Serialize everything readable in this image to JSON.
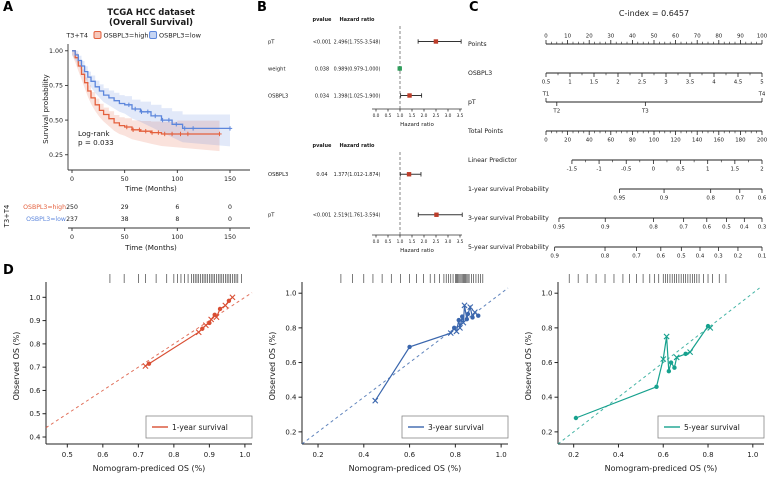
{
  "panels": {
    "a": "A",
    "b": "B",
    "c": "C",
    "d": "D"
  },
  "chart_data": [
    {
      "id": "km",
      "type": "km",
      "title_lines": [
        "TCGA HCC dataset",
        "(Overall Survival)"
      ],
      "legend_title": "T3+T4",
      "xlabel": "Time (Months)",
      "ylabel": "Survival probability",
      "xticks": [
        0,
        50,
        100,
        150
      ],
      "yticks": [
        1.0,
        0.75,
        0.5,
        0.25
      ],
      "annotation_lines": [
        "Log-rank",
        "p = 0.033"
      ],
      "series": [
        {
          "name": "OSBPL3=high",
          "color": "#E4603D",
          "x": [
            0,
            3,
            6,
            9,
            12,
            15,
            18,
            22,
            26,
            30,
            35,
            40,
            45,
            50,
            57,
            65,
            75,
            85,
            100,
            140
          ],
          "y": [
            1.0,
            0.95,
            0.89,
            0.83,
            0.77,
            0.71,
            0.66,
            0.61,
            0.57,
            0.54,
            0.51,
            0.48,
            0.46,
            0.45,
            0.43,
            0.42,
            0.41,
            0.4,
            0.4,
            0.4
          ],
          "censors": [
            52,
            58,
            64,
            70,
            76,
            82,
            88,
            95,
            103,
            110,
            140
          ]
        },
        {
          "name": "OSBPL3=low",
          "color": "#5C86DC",
          "x": [
            0,
            3,
            6,
            9,
            12,
            15,
            18,
            22,
            26,
            30,
            35,
            40,
            45,
            50,
            57,
            65,
            75,
            85,
            95,
            105,
            150
          ],
          "y": [
            1.0,
            0.97,
            0.93,
            0.89,
            0.85,
            0.81,
            0.78,
            0.74,
            0.71,
            0.68,
            0.66,
            0.64,
            0.62,
            0.61,
            0.58,
            0.56,
            0.53,
            0.5,
            0.47,
            0.44,
            0.44
          ],
          "censors": [
            54,
            60,
            66,
            72,
            79,
            86,
            92,
            99,
            107,
            115,
            150
          ]
        }
      ],
      "risk_table": {
        "group_label": "T3+T4",
        "xlabel": "Time (Months)",
        "xticks": [
          0,
          50,
          100,
          150
        ],
        "rows": [
          {
            "name": "OSBPL3=high",
            "color": "#E4603D",
            "values": [
              250,
              29,
              6,
              0
            ]
          },
          {
            "name": "OSBPL3=low",
            "color": "#5C86DC",
            "values": [
              237,
              38,
              8,
              0
            ]
          }
        ]
      }
    },
    {
      "id": "forest1",
      "type": "forest",
      "col_headers": [
        "pvalue",
        "Hazard ratio"
      ],
      "xlabel": "Hazard ratio",
      "xticks": [
        0.0,
        0.5,
        1.0,
        1.5,
        2.0,
        2.5,
        3.0,
        3.5
      ],
      "xmax": 3.5,
      "refline": 1.0,
      "rows": [
        {
          "name": "pT",
          "pvalue": "<0.001",
          "label": "2.496(1.755-3.548)",
          "hr": 2.496,
          "lo": 1.755,
          "hi": 3.548,
          "color": "#BC3C29"
        },
        {
          "name": "weight",
          "pvalue": "0.038",
          "label": "0.989(0.979-1.000)",
          "hr": 0.989,
          "lo": 0.979,
          "hi": 1.0,
          "color": "#2E9E5B"
        },
        {
          "name": "OSBPL3",
          "pvalue": "0.034",
          "label": "1.398(1.025-1.900)",
          "hr": 1.398,
          "lo": 1.025,
          "hi": 1.9,
          "color": "#BC3C29"
        }
      ]
    },
    {
      "id": "forest2",
      "type": "forest",
      "col_headers": [
        "pvalue",
        "Hazard ratio"
      ],
      "xlabel": "Hazard ratio",
      "xticks": [
        0.0,
        0.5,
        1.0,
        1.5,
        2.0,
        2.5,
        3.0,
        3.5
      ],
      "xmax": 3.5,
      "refline": 1.0,
      "rows": [
        {
          "name": "OSBPL3",
          "pvalue": "0.04",
          "label": "1.377(1.012-1.874)",
          "hr": 1.377,
          "lo": 1.012,
          "hi": 1.874,
          "color": "#BC3C29"
        },
        {
          "name": "pT",
          "pvalue": "<0.001",
          "label": "2.519(1.761-3.594)",
          "hr": 2.519,
          "lo": 1.761,
          "hi": 3.594,
          "color": "#BC3C29"
        }
      ]
    },
    {
      "id": "nomogram",
      "type": "nomogram",
      "title": "C-index = 0.6457",
      "rows": [
        {
          "name": "Points",
          "side": "above",
          "minor": 3,
          "start": 0,
          "end": 1,
          "ticks": [
            "0",
            "10",
            "20",
            "30",
            "40",
            "50",
            "60",
            "70",
            "80",
            "90",
            "100"
          ]
        },
        {
          "name": "OSBPL3",
          "side": "below",
          "minor": 1,
          "start": 0,
          "end": 1,
          "ticks": [
            "0.5",
            "1",
            "1.5",
            "2",
            "2.5",
            "3",
            "3.5",
            "4",
            "4.5",
            "5"
          ]
        },
        {
          "name": "pT",
          "start": 0,
          "end": 1,
          "ticks": [
            {
              "label": "T1",
              "pos": 0,
              "side": "above"
            },
            {
              "label": "T2",
              "pos": 0.05,
              "side": "below"
            },
            {
              "label": "T3",
              "pos": 0.46,
              "side": "below"
            },
            {
              "label": "T4",
              "pos": 1,
              "side": "above"
            }
          ]
        },
        {
          "name": "Total Points",
          "side": "below",
          "minor": 3,
          "start": 0,
          "end": 1,
          "ticks": [
            "0",
            "20",
            "40",
            "60",
            "80",
            "100",
            "120",
            "140",
            "160",
            "180",
            "200"
          ]
        },
        {
          "name": "Linear Predictor",
          "side": "below",
          "minor": 1,
          "start": 0.12,
          "end": 1,
          "ticks": [
            "-1.5",
            "-1",
            "-0.5",
            "0",
            "0.5",
            "1",
            "1.5",
            "2"
          ]
        },
        {
          "name": "1-year survival Probability",
          "side": "below",
          "start": 0.34,
          "end": 1,
          "ticks": [
            "0.95",
            "0.9",
            "0.8",
            "0.7",
            "0.6"
          ],
          "positions": [
            0,
            0.313,
            0.64,
            0.844,
            1
          ]
        },
        {
          "name": "3-year survival Probability",
          "side": "below",
          "start": 0.06,
          "end": 1,
          "ticks": [
            "0.95",
            "0.9",
            "0.8",
            "0.7",
            "0.6",
            "0.5",
            "0.4",
            "0.3"
          ],
          "positions": [
            0,
            0.228,
            0.466,
            0.614,
            0.728,
            0.825,
            0.913,
            1
          ]
        },
        {
          "name": "5-year survival Probability",
          "side": "below",
          "start": 0.04,
          "end": 1,
          "ticks": [
            "0.9",
            "0.8",
            "0.7",
            "0.6",
            "0.5",
            "0.4",
            "0.3",
            "0.2",
            "0.1"
          ],
          "positions": [
            0,
            0.243,
            0.395,
            0.512,
            0.611,
            0.701,
            0.79,
            0.884,
            1
          ]
        }
      ]
    },
    {
      "id": "cal1",
      "type": "calibration",
      "color": "#D94E33",
      "legend": "1-year survival",
      "xlabel": "Nomogram-prediced OS (%)",
      "ylabel": "Observed OS (%)",
      "xlim": [
        0.44,
        1.02
      ],
      "ylim": [
        0.37,
        1.04
      ],
      "xticks": [
        0.5,
        0.6,
        0.7,
        0.8,
        0.9,
        1.0
      ],
      "yticks": [
        0.4,
        0.5,
        0.6,
        0.7,
        0.8,
        0.9,
        1.0
      ],
      "points": [
        {
          "x": 0.72,
          "y": 0.705,
          "m": "x"
        },
        {
          "x": 0.73,
          "y": 0.715,
          "m": "o"
        },
        {
          "x": 0.87,
          "y": 0.85,
          "m": "x"
        },
        {
          "x": 0.88,
          "y": 0.865,
          "m": "o"
        },
        {
          "x": 0.89,
          "y": 0.88,
          "m": "x"
        },
        {
          "x": 0.9,
          "y": 0.89,
          "m": "o"
        },
        {
          "x": 0.905,
          "y": 0.905,
          "m": "x"
        },
        {
          "x": 0.915,
          "y": 0.925,
          "m": "o"
        },
        {
          "x": 0.92,
          "y": 0.915,
          "m": "x"
        },
        {
          "x": 0.93,
          "y": 0.95,
          "m": "o"
        },
        {
          "x": 0.945,
          "y": 0.965,
          "m": "x"
        },
        {
          "x": 0.955,
          "y": 0.985,
          "m": "o"
        },
        {
          "x": 0.965,
          "y": 1.0,
          "m": "x"
        }
      ],
      "rug": [
        0.62,
        0.66,
        0.7,
        0.72,
        0.75,
        0.78,
        0.8,
        0.81,
        0.82,
        0.83,
        0.84,
        0.85,
        0.855,
        0.86,
        0.865,
        0.87,
        0.875,
        0.88,
        0.885,
        0.89,
        0.895,
        0.9,
        0.905,
        0.91,
        0.915,
        0.92,
        0.925,
        0.93,
        0.935,
        0.94,
        0.945,
        0.95,
        0.955,
        0.96,
        0.965,
        0.97,
        0.975,
        0.98,
        0.99
      ]
    },
    {
      "id": "cal2",
      "type": "calibration",
      "color": "#3A66AD",
      "legend": "3-year survival",
      "xlabel": "Nomogram-prediced OS (%)",
      "ylabel": "Observed OS (%)",
      "xlim": [
        0.13,
        1.03
      ],
      "ylim": [
        0.13,
        1.03
      ],
      "xticks": [
        0.2,
        0.4,
        0.6,
        0.8,
        1.0
      ],
      "yticks": [
        0.2,
        0.4,
        0.6,
        0.8,
        1.0
      ],
      "points": [
        {
          "x": 0.45,
          "y": 0.38,
          "m": "x"
        },
        {
          "x": 0.6,
          "y": 0.69,
          "m": "o"
        },
        {
          "x": 0.78,
          "y": 0.77,
          "m": "x"
        },
        {
          "x": 0.795,
          "y": 0.8,
          "m": "o"
        },
        {
          "x": 0.805,
          "y": 0.78,
          "m": "x"
        },
        {
          "x": 0.815,
          "y": 0.845,
          "m": "o"
        },
        {
          "x": 0.82,
          "y": 0.8,
          "m": "x"
        },
        {
          "x": 0.83,
          "y": 0.865,
          "m": "o"
        },
        {
          "x": 0.835,
          "y": 0.83,
          "m": "x"
        },
        {
          "x": 0.84,
          "y": 0.93,
          "m": "x"
        },
        {
          "x": 0.85,
          "y": 0.85,
          "m": "o"
        },
        {
          "x": 0.855,
          "y": 0.88,
          "m": "o"
        },
        {
          "x": 0.865,
          "y": 0.92,
          "m": "x"
        },
        {
          "x": 0.875,
          "y": 0.86,
          "m": "o"
        },
        {
          "x": 0.885,
          "y": 0.89,
          "m": "x"
        },
        {
          "x": 0.9,
          "y": 0.87,
          "m": "o"
        }
      ],
      "rug": [
        0.3,
        0.35,
        0.4,
        0.44,
        0.48,
        0.52,
        0.56,
        0.6,
        0.63,
        0.66,
        0.69,
        0.71,
        0.73,
        0.75,
        0.76,
        0.77,
        0.78,
        0.79,
        0.8,
        0.805,
        0.81,
        0.815,
        0.82,
        0.825,
        0.83,
        0.835,
        0.84,
        0.845,
        0.85,
        0.855,
        0.86,
        0.87,
        0.88,
        0.89,
        0.9,
        0.91,
        0.92
      ]
    },
    {
      "id": "cal3",
      "type": "calibration",
      "color": "#17A18E",
      "legend": "5-year survival",
      "xlabel": "Nomogram-prediced OS (%)",
      "ylabel": "Observed OS (%)",
      "xlim": [
        0.13,
        1.05
      ],
      "ylim": [
        0.13,
        1.03
      ],
      "xticks": [
        0.2,
        0.4,
        0.6,
        0.8,
        1.0
      ],
      "yticks": [
        0.2,
        0.4,
        0.6,
        0.8,
        1.0
      ],
      "points": [
        {
          "x": 0.21,
          "y": 0.28,
          "m": "o"
        },
        {
          "x": 0.57,
          "y": 0.46,
          "m": "o"
        },
        {
          "x": 0.6,
          "y": 0.62,
          "m": "x"
        },
        {
          "x": 0.615,
          "y": 0.75,
          "m": "x"
        },
        {
          "x": 0.625,
          "y": 0.55,
          "m": "o"
        },
        {
          "x": 0.635,
          "y": 0.6,
          "m": "o"
        },
        {
          "x": 0.65,
          "y": 0.57,
          "m": "o"
        },
        {
          "x": 0.66,
          "y": 0.63,
          "m": "x"
        },
        {
          "x": 0.7,
          "y": 0.65,
          "m": "o"
        },
        {
          "x": 0.72,
          "y": 0.66,
          "m": "x"
        },
        {
          "x": 0.8,
          "y": 0.81,
          "m": "o"
        },
        {
          "x": 0.81,
          "y": 0.8,
          "m": "x"
        }
      ],
      "rug": [
        0.18,
        0.22,
        0.26,
        0.3,
        0.34,
        0.38,
        0.42,
        0.45,
        0.48,
        0.51,
        0.54,
        0.56,
        0.58,
        0.6,
        0.61,
        0.62,
        0.63,
        0.64,
        0.65,
        0.66,
        0.67,
        0.68,
        0.69,
        0.7,
        0.71,
        0.72,
        0.73,
        0.74,
        0.75,
        0.76,
        0.78,
        0.8,
        0.82,
        0.85,
        0.88
      ]
    }
  ]
}
